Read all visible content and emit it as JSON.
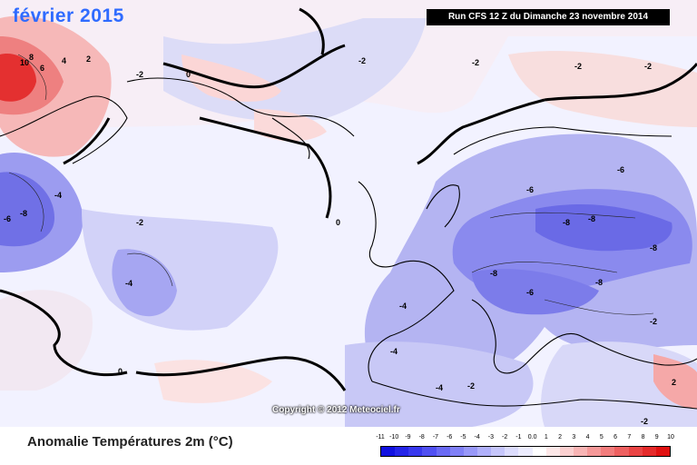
{
  "map": {
    "period_label": "février 2015",
    "run_info": "Run CFS 12 Z du Dimanche 23 novembre 2014",
    "copyright": "Copyright © 2012 Meteociel.fr",
    "contour_labels": [
      "10",
      "8",
      "6",
      "4",
      "2",
      "0",
      "-2",
      "-4",
      "-6",
      "-8"
    ]
  },
  "legend": {
    "title": "Anomalie Températures 2m (°C)",
    "scale": [
      "-11",
      "-10",
      "-9",
      "-8",
      "-7",
      "-6",
      "-5",
      "-4",
      "-3",
      "-2",
      "-1",
      "0.0",
      "1",
      "2",
      "3",
      "4",
      "5",
      "6",
      "7",
      "8",
      "9",
      "10"
    ],
    "colors": [
      "#1010e0",
      "#2424e8",
      "#3838ee",
      "#5050f2",
      "#6a6af4",
      "#8080f6",
      "#9898f8",
      "#b0b0fa",
      "#c6c6fb",
      "#dcdcfd",
      "#ececfe",
      "#ffffff",
      "#fde8e8",
      "#fbd0d0",
      "#f8b4b4",
      "#f59898",
      "#f27c7c",
      "#ee6060",
      "#ea4444",
      "#e52a2a",
      "#e01010"
    ]
  }
}
